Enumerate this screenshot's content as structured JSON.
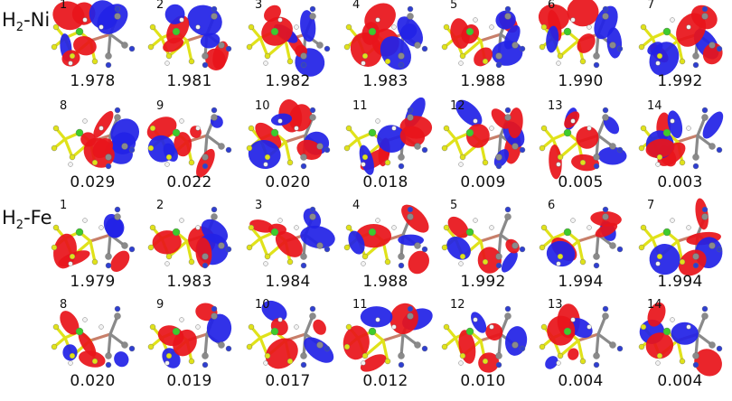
{
  "sections": [
    {
      "label_main": "H",
      "label_sub": "2",
      "label_rest": "-Ni",
      "rows": [
        [
          {
            "index": "1",
            "occupation": "1.978"
          },
          {
            "index": "2",
            "occupation": "1.981"
          },
          {
            "index": "3",
            "occupation": "1.982"
          },
          {
            "index": "4",
            "occupation": "1.983"
          },
          {
            "index": "5",
            "occupation": "1.988"
          },
          {
            "index": "6",
            "occupation": "1.990"
          },
          {
            "index": "7",
            "occupation": "1.992"
          }
        ],
        [
          {
            "index": "8",
            "occupation": "0.029"
          },
          {
            "index": "9",
            "occupation": "0.022"
          },
          {
            "index": "10",
            "occupation": "0.020"
          },
          {
            "index": "11",
            "occupation": "0.018"
          },
          {
            "index": "12",
            "occupation": "0.009"
          },
          {
            "index": "13",
            "occupation": "0.005"
          },
          {
            "index": "14",
            "occupation": "0.003"
          }
        ]
      ]
    },
    {
      "label_main": "H",
      "label_sub": "2",
      "label_rest": "-Fe",
      "rows": [
        [
          {
            "index": "1",
            "occupation": "1.979"
          },
          {
            "index": "2",
            "occupation": "1.983"
          },
          {
            "index": "3",
            "occupation": "1.984"
          },
          {
            "index": "4",
            "occupation": "1.988"
          },
          {
            "index": "5",
            "occupation": "1.992"
          },
          {
            "index": "6",
            "occupation": "1.994"
          },
          {
            "index": "7",
            "occupation": "1.994"
          }
        ],
        [
          {
            "index": "8",
            "occupation": "0.020"
          },
          {
            "index": "9",
            "occupation": "0.019"
          },
          {
            "index": "10",
            "occupation": "0.017"
          },
          {
            "index": "11",
            "occupation": "0.012"
          },
          {
            "index": "12",
            "occupation": "0.010"
          },
          {
            "index": "13",
            "occupation": "0.004"
          },
          {
            "index": "14",
            "occupation": "0.004"
          }
        ]
      ]
    }
  ],
  "colors": {
    "lobe_positive": "#e8141b",
    "lobe_negative": "#2222e6",
    "sulfur": "#e0e21a",
    "carbon": "#8a8a8a",
    "nitrogen": "#2f3fd0",
    "hydrogen": "#f2f2f2",
    "metal": "#c87f6a",
    "green_atom": "#3ecb2c"
  }
}
